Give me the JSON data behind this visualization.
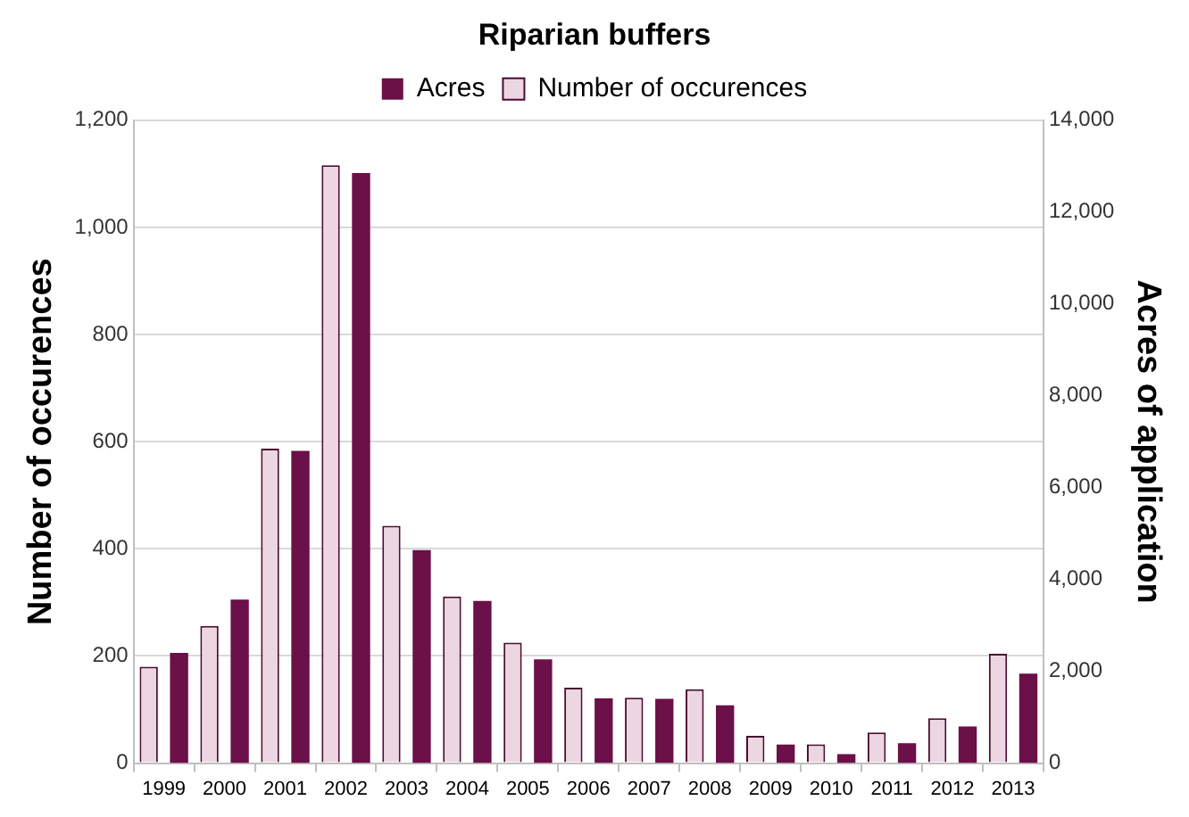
{
  "chart_data": {
    "type": "bar",
    "title": "Riparian buffers",
    "categories": [
      "1999",
      "2000",
      "2001",
      "2002",
      "2003",
      "2004",
      "2005",
      "2006",
      "2007",
      "2008",
      "2009",
      "2010",
      "2011",
      "2012",
      "2013"
    ],
    "series": [
      {
        "name": "Number of occurences",
        "color": "#ecd6e2",
        "axis": "y",
        "values": [
          180,
          256,
          587,
          1116,
          443,
          311,
          225,
          141,
          122,
          138,
          51,
          35,
          57,
          84,
          204
        ]
      },
      {
        "name": "Acres",
        "color": "#6b1048",
        "axis": "y2",
        "values": [
          2400,
          3560,
          6800,
          12850,
          4640,
          3530,
          2260,
          1410,
          1400,
          1260,
          405,
          196,
          433,
          796,
          1950
        ]
      }
    ],
    "ylabel": "Number of occurences",
    "y2label": "Acres of application",
    "ylim": [
      0,
      1200
    ],
    "yticks": [
      {
        "value": 0,
        "label": "0"
      },
      {
        "value": 200,
        "label": "200"
      },
      {
        "value": 400,
        "label": "400"
      },
      {
        "value": 600,
        "label": "600"
      },
      {
        "value": 800,
        "label": "800"
      },
      {
        "value": 1000,
        "label": "1,000"
      },
      {
        "value": 1200,
        "label": "1,200"
      }
    ],
    "y2lim": [
      0,
      14000
    ],
    "y2ticks": [
      {
        "value": 0,
        "label": "0"
      },
      {
        "value": 2000,
        "label": "2,000"
      },
      {
        "value": 4000,
        "label": "4,000"
      },
      {
        "value": 6000,
        "label": "6,000"
      },
      {
        "value": 8000,
        "label": "8,000"
      },
      {
        "value": 10000,
        "label": "10,000"
      },
      {
        "value": 12000,
        "label": "12,000"
      },
      {
        "value": 14000,
        "label": "14,000"
      }
    ],
    "grid": "y",
    "legend": "top"
  }
}
